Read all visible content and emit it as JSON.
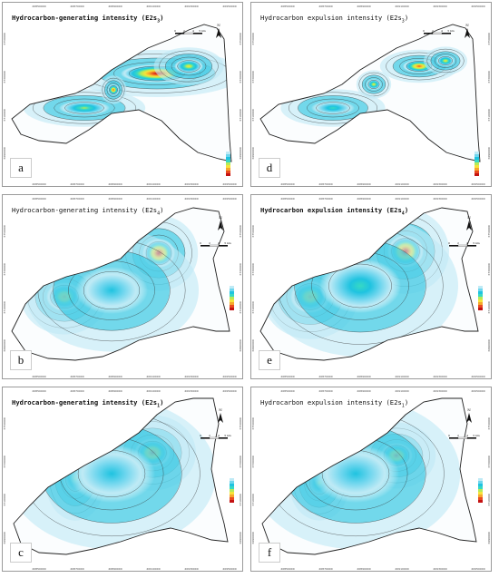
{
  "panels": [
    {
      "id": "a",
      "label": "a",
      "title": "Hydrocarbon-generating intensity (E",
      "member": "2",
      "sub": "s",
      "sub2": "3",
      "bold": true
    },
    {
      "id": "d",
      "label": "d",
      "title": "Hydrocarbon expulsion intensity (E",
      "member": "2",
      "sub": "s",
      "sub2": "3",
      "bold": false
    },
    {
      "id": "b",
      "label": "b",
      "title": "Hydrocarbon-generating intensity (E",
      "member": "2",
      "sub": "s",
      "sub2": "4",
      "bold": false
    },
    {
      "id": "e",
      "label": "e",
      "title": "Hydrocarbon expulsion intensity (E",
      "member": "2",
      "sub": "s",
      "sub2": "4",
      "bold": true
    },
    {
      "id": "c",
      "label": "c",
      "title": "Hydrocarbon-generating intensity (E",
      "member": "2",
      "sub": "s",
      "sub2": "1",
      "bold": true
    },
    {
      "id": "f",
      "label": "f",
      "title": "Hydrocarbon expulsion intensity (E",
      "member": "2",
      "sub": "s",
      "sub2": "1",
      "bold": false
    }
  ],
  "axis_ticks": {
    "top": [
      "20850000",
      "20870000",
      "20890000",
      "20910000",
      "20930000",
      "20950000"
    ],
    "left": [
      "3750000",
      "3730000",
      "3710000",
      "3690000"
    ]
  },
  "scale": {
    "labels": [
      "0",
      "2",
      "4",
      "5 km"
    ]
  },
  "north": "N",
  "colors": {
    "ramp": [
      "#e9f7fb",
      "#bfeaf5",
      "#6fd6ee",
      "#1fc3e0",
      "#37d9c4",
      "#b3ea5a",
      "#f6e33a",
      "#f6a62c",
      "#ea4b1f",
      "#c41212"
    ],
    "contour": "#333333",
    "boundary": "#222222"
  }
}
